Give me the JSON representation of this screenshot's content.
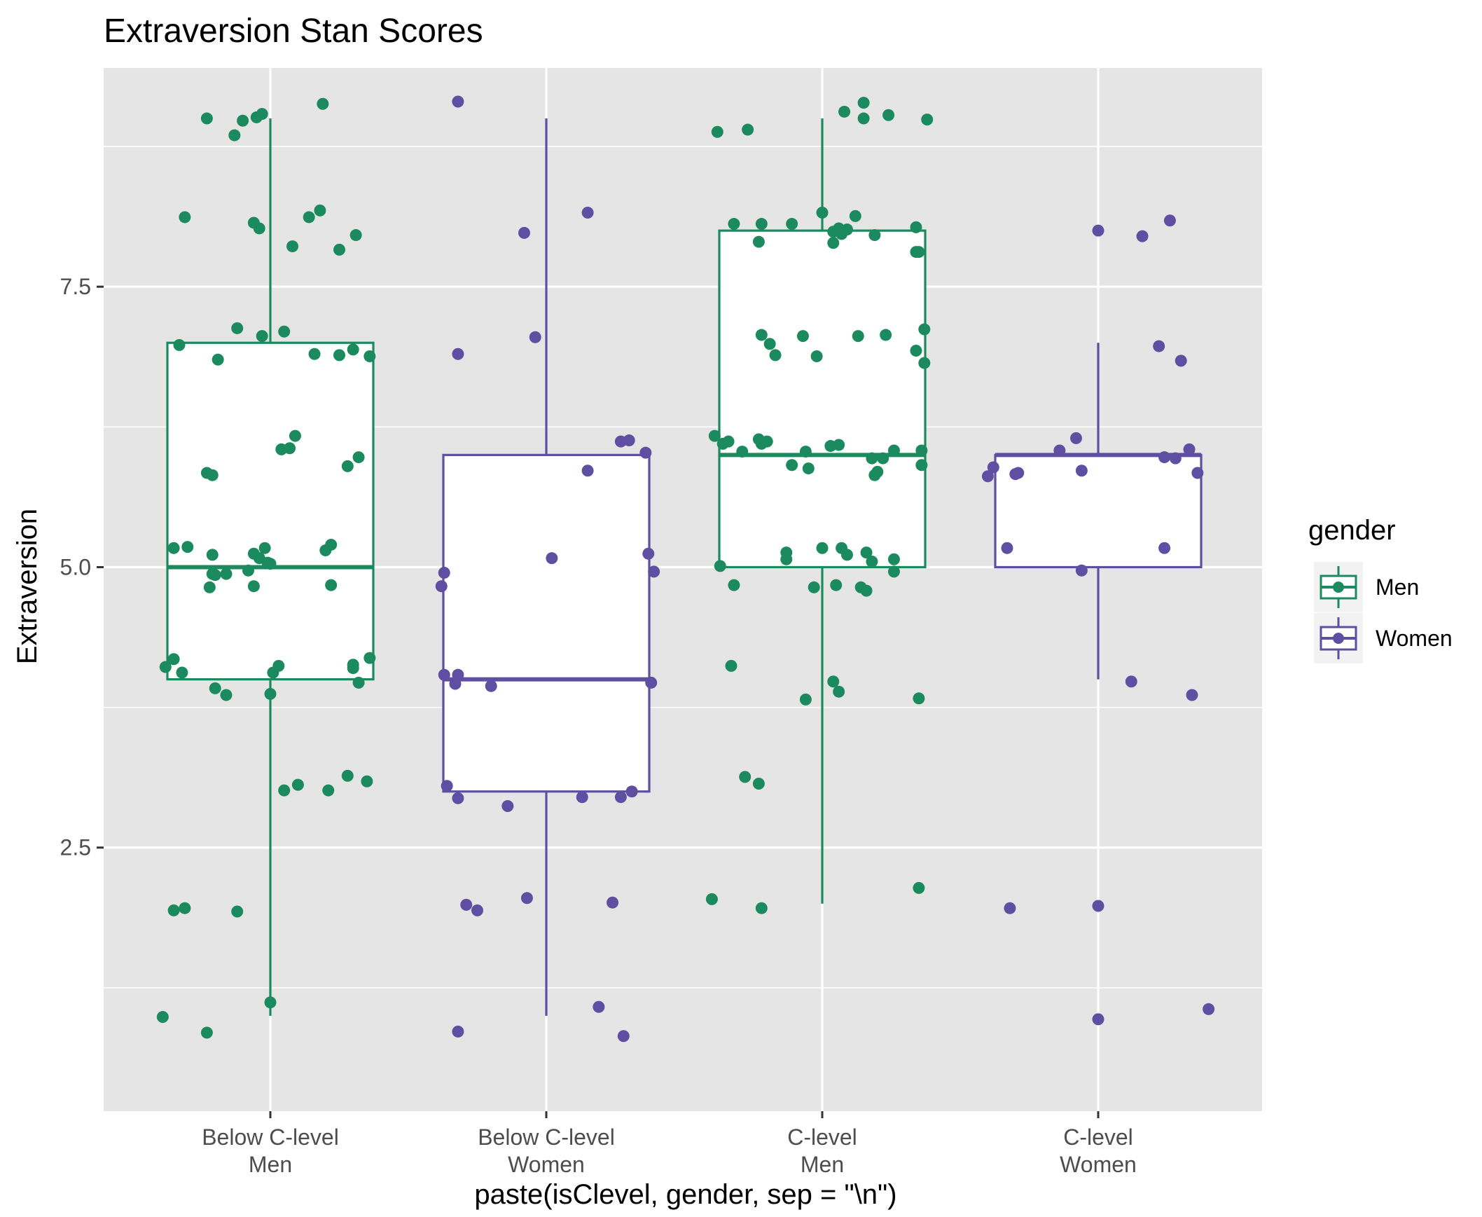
{
  "chart_data": {
    "type": "boxplot",
    "title": "Extraversion Stan Scores",
    "xlabel": "paste(isClevel, gender, sep = \"\\n\")",
    "ylabel": "Extraversion",
    "ylim": [
      0.15,
      9.45
    ],
    "yticks": [
      {
        "value": 2.5,
        "label": "2.5"
      },
      {
        "value": 5.0,
        "label": "5.0"
      },
      {
        "value": 7.5,
        "label": "7.5"
      }
    ],
    "categories": [
      {
        "line1": "Below C-level",
        "line2": "Men",
        "group": "Men"
      },
      {
        "line1": "Below C-level",
        "line2": "Women",
        "group": "Women"
      },
      {
        "line1": "C-level",
        "line2": "Men",
        "group": "Men"
      },
      {
        "line1": "C-level",
        "line2": "Women",
        "group": "Women"
      }
    ],
    "legend": {
      "title": "gender",
      "position": "right",
      "items": [
        {
          "label": "Men",
          "color": "#1b8a5f"
        },
        {
          "label": "Women",
          "color": "#5e4fa2"
        }
      ]
    },
    "colors": {
      "Men": "#1b8a5f",
      "Women": "#5e4fa2",
      "panel": "#e5e5e5",
      "grid": "#ffffff"
    },
    "boxes": [
      {
        "whisker_low": 1.0,
        "q1": 4.0,
        "median": 5.0,
        "q3": 7.0,
        "whisker_high": 9.0
      },
      {
        "whisker_low": 1.0,
        "q1": 3.0,
        "median": 4.0,
        "q3": 6.0,
        "whisker_high": 9.0
      },
      {
        "whisker_low": 2.0,
        "q1": 5.0,
        "median": 6.0,
        "q3": 8.0,
        "whisker_high": 9.0
      },
      {
        "whisker_low": 4.0,
        "q1": 5.0,
        "median": 6.0,
        "q3": 6.0,
        "whisker_high": 7.0
      }
    ],
    "points": [
      [
        [
          -0.39,
          0.99
        ],
        [
          -0.23,
          0.85
        ],
        [
          -0.35,
          1.94
        ],
        [
          -0.31,
          1.96
        ],
        [
          -0.12,
          1.93
        ],
        [
          0.0,
          1.12
        ],
        [
          -0.38,
          4.11
        ],
        [
          -0.35,
          4.18
        ],
        [
          -0.32,
          4.06
        ],
        [
          -0.2,
          3.92
        ],
        [
          -0.16,
          3.86
        ],
        [
          0.0,
          3.87
        ],
        [
          0.01,
          4.06
        ],
        [
          0.03,
          4.12
        ],
        [
          0.36,
          4.19
        ],
        [
          0.3,
          4.13
        ],
        [
          0.3,
          4.1
        ],
        [
          0.32,
          3.97
        ],
        [
          0.05,
          3.01
        ],
        [
          0.1,
          3.06
        ],
        [
          0.21,
          3.01
        ],
        [
          0.28,
          3.14
        ],
        [
          0.35,
          3.09
        ],
        [
          -0.35,
          5.17
        ],
        [
          -0.3,
          5.18
        ],
        [
          -0.21,
          5.11
        ],
        [
          -0.21,
          4.94
        ],
        [
          -0.2,
          4.93
        ],
        [
          -0.22,
          4.82
        ],
        [
          -0.16,
          4.94
        ],
        [
          -0.08,
          4.97
        ],
        [
          -0.06,
          5.12
        ],
        [
          -0.04,
          5.08
        ],
        [
          -0.06,
          4.83
        ],
        [
          -0.01,
          5.04
        ],
        [
          0.0,
          5.03
        ],
        [
          -0.02,
          5.17
        ],
        [
          0.2,
          5.15
        ],
        [
          0.22,
          5.2
        ],
        [
          0.22,
          4.84
        ],
        [
          -0.23,
          5.84
        ],
        [
          -0.21,
          5.82
        ],
        [
          0.04,
          6.05
        ],
        [
          0.07,
          6.06
        ],
        [
          0.09,
          6.17
        ],
        [
          0.28,
          5.9
        ],
        [
          0.32,
          5.98
        ],
        [
          -0.33,
          6.98
        ],
        [
          -0.19,
          6.85
        ],
        [
          -0.12,
          7.13
        ],
        [
          -0.03,
          7.06
        ],
        [
          0.05,
          7.1
        ],
        [
          0.16,
          6.9
        ],
        [
          0.25,
          6.89
        ],
        [
          0.3,
          6.94
        ],
        [
          0.36,
          6.88
        ],
        [
          -0.31,
          8.12
        ],
        [
          -0.06,
          8.07
        ],
        [
          -0.04,
          8.02
        ],
        [
          0.08,
          7.86
        ],
        [
          0.14,
          8.12
        ],
        [
          0.18,
          8.18
        ],
        [
          0.25,
          7.83
        ],
        [
          0.31,
          7.96
        ],
        [
          -0.23,
          9.0
        ],
        [
          -0.13,
          8.85
        ],
        [
          -0.1,
          8.98
        ],
        [
          -0.05,
          9.01
        ],
        [
          -0.03,
          9.04
        ],
        [
          0.19,
          9.13
        ]
      ],
      [
        [
          -0.32,
          0.86
        ],
        [
          -0.29,
          1.99
        ],
        [
          -0.25,
          1.94
        ],
        [
          -0.07,
          2.05
        ],
        [
          0.24,
          2.01
        ],
        [
          0.19,
          1.08
        ],
        [
          0.28,
          0.82
        ],
        [
          -0.37,
          4.04
        ],
        [
          -0.32,
          4.04
        ],
        [
          -0.33,
          3.96
        ],
        [
          -0.2,
          3.94
        ],
        [
          0.38,
          3.97
        ],
        [
          -0.36,
          3.05
        ],
        [
          -0.32,
          2.94
        ],
        [
          -0.14,
          2.87
        ],
        [
          0.13,
          2.95
        ],
        [
          0.27,
          2.95
        ],
        [
          0.31,
          3.0
        ],
        [
          -0.38,
          4.83
        ],
        [
          -0.37,
          4.95
        ],
        [
          0.02,
          5.08
        ],
        [
          0.37,
          5.12
        ],
        [
          0.39,
          4.96
        ],
        [
          0.15,
          5.86
        ],
        [
          0.27,
          6.12
        ],
        [
          0.3,
          6.13
        ],
        [
          0.36,
          6.02
        ],
        [
          -0.32,
          6.9
        ],
        [
          -0.04,
          7.05
        ],
        [
          -0.08,
          7.98
        ],
        [
          0.15,
          8.16
        ],
        [
          -0.32,
          9.15
        ]
      ],
      [
        [
          -0.4,
          2.04
        ],
        [
          -0.22,
          1.96
        ],
        [
          0.35,
          2.14
        ],
        [
          -0.33,
          4.12
        ],
        [
          -0.28,
          3.13
        ],
        [
          -0.23,
          3.07
        ],
        [
          -0.06,
          3.82
        ],
        [
          0.04,
          3.98
        ],
        [
          0.06,
          3.89
        ],
        [
          0.35,
          3.83
        ],
        [
          -0.37,
          5.01
        ],
        [
          -0.32,
          4.84
        ],
        [
          -0.13,
          5.13
        ],
        [
          -0.13,
          5.07
        ],
        [
          -0.03,
          4.82
        ],
        [
          -0.0,
          5.17
        ],
        [
          0.05,
          4.84
        ],
        [
          0.07,
          5.17
        ],
        [
          0.09,
          5.11
        ],
        [
          0.14,
          4.82
        ],
        [
          0.16,
          4.79
        ],
        [
          0.16,
          5.13
        ],
        [
          0.18,
          5.05
        ],
        [
          0.26,
          4.96
        ],
        [
          0.26,
          5.07
        ],
        [
          -0.39,
          6.17
        ],
        [
          -0.36,
          6.1
        ],
        [
          -0.34,
          6.12
        ],
        [
          -0.29,
          6.03
        ],
        [
          -0.23,
          6.14
        ],
        [
          -0.22,
          6.1
        ],
        [
          -0.2,
          6.12
        ],
        [
          -0.06,
          6.03
        ],
        [
          -0.11,
          5.91
        ],
        [
          -0.05,
          5.88
        ],
        [
          0.03,
          6.08
        ],
        [
          0.06,
          6.09
        ],
        [
          0.18,
          5.97
        ],
        [
          0.19,
          5.82
        ],
        [
          0.2,
          5.85
        ],
        [
          0.22,
          5.97
        ],
        [
          0.26,
          6.04
        ],
        [
          0.36,
          6.04
        ],
        [
          0.36,
          5.91
        ],
        [
          -0.22,
          7.07
        ],
        [
          -0.19,
          6.99
        ],
        [
          -0.17,
          6.89
        ],
        [
          -0.07,
          7.06
        ],
        [
          -0.02,
          6.88
        ],
        [
          0.13,
          7.06
        ],
        [
          0.23,
          7.07
        ],
        [
          0.34,
          6.93
        ],
        [
          0.37,
          6.82
        ],
        [
          0.37,
          7.12
        ],
        [
          -0.32,
          8.06
        ],
        [
          -0.22,
          8.06
        ],
        [
          -0.11,
          8.06
        ],
        [
          0.0,
          8.16
        ],
        [
          0.04,
          7.99
        ],
        [
          0.06,
          8.02
        ],
        [
          0.09,
          8.01
        ],
        [
          0.04,
          7.89
        ],
        [
          0.07,
          7.97
        ],
        [
          0.12,
          8.13
        ],
        [
          0.19,
          7.96
        ],
        [
          0.34,
          8.03
        ],
        [
          0.35,
          7.81
        ],
        [
          0.34,
          7.81
        ],
        [
          -0.23,
          7.9
        ],
        [
          -0.38,
          8.88
        ],
        [
          -0.27,
          8.9
        ],
        [
          0.08,
          9.06
        ],
        [
          0.15,
          9.14
        ],
        [
          0.15,
          9.0
        ],
        [
          0.24,
          9.03
        ],
        [
          0.38,
          8.99
        ]
      ],
      [
        [
          -0.32,
          1.96
        ],
        [
          0.0,
          1.98
        ],
        [
          0.0,
          0.97
        ],
        [
          0.4,
          1.06
        ],
        [
          0.12,
          3.98
        ],
        [
          0.34,
          3.86
        ],
        [
          -0.06,
          4.97
        ],
        [
          -0.4,
          5.81
        ],
        [
          -0.38,
          5.89
        ],
        [
          -0.33,
          5.17
        ],
        [
          -0.3,
          5.83
        ],
        [
          -0.29,
          5.84
        ],
        [
          -0.14,
          6.04
        ],
        [
          -0.08,
          6.15
        ],
        [
          -0.06,
          5.86
        ],
        [
          0.24,
          5.17
        ],
        [
          0.24,
          5.98
        ],
        [
          0.28,
          5.97
        ],
        [
          0.33,
          6.05
        ],
        [
          0.36,
          5.84
        ],
        [
          0.0,
          8.0
        ],
        [
          0.16,
          7.95
        ],
        [
          0.26,
          8.09
        ],
        [
          0.22,
          6.97
        ],
        [
          0.3,
          6.84
        ]
      ]
    ]
  }
}
